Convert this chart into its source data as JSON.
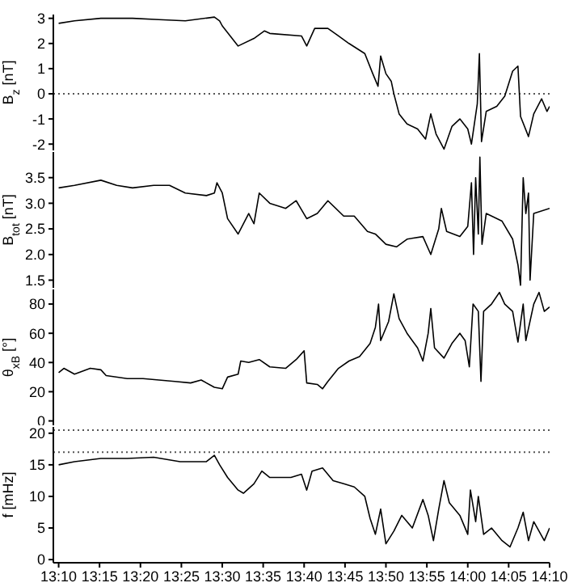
{
  "chart_data": [
    {
      "type": "line",
      "ylabel": "B$_{z}$ [nT]",
      "tick_labels": "y",
      "xlim": [
        13.1559,
        14.1667
      ],
      "xticks": [
        {
          "value": 13.1667,
          "label": null
        },
        {
          "value": 13.25,
          "label": null
        },
        {
          "value": 13.3333,
          "label": null
        },
        {
          "value": 13.4167,
          "label": null
        },
        {
          "value": 13.5,
          "label": null
        },
        {
          "value": 13.5833,
          "label": null
        },
        {
          "value": 13.6667,
          "label": null
        },
        {
          "value": 13.75,
          "label": null
        },
        {
          "value": 13.8333,
          "label": null
        },
        {
          "value": 13.9167,
          "label": null
        },
        {
          "value": 14,
          "label": null
        },
        {
          "value": 14.0833,
          "label": null
        },
        {
          "value": 14.1667,
          "label": null
        }
      ],
      "ylim": [
        -2.25,
        3.15
      ],
      "yticks": [
        -2,
        -1,
        0,
        1,
        2,
        3
      ],
      "ref_lines": [
        {
          "axis": "y",
          "value": 0,
          "line_style": "dotted"
        }
      ],
      "x": [
        13.1667,
        13.199,
        13.2527,
        13.3172,
        13.371,
        13.4247,
        13.4839,
        13.4946,
        13.5,
        13.5323,
        13.5645,
        13.586,
        13.5968,
        13.6613,
        13.672,
        13.6882,
        13.7151,
        13.7366,
        13.7581,
        13.7903,
        13.8065,
        13.8172,
        13.8226,
        13.8333,
        13.8441,
        13.8495,
        13.8602,
        13.8763,
        13.8978,
        13.914,
        13.9247,
        13.9355,
        13.9516,
        13.9677,
        13.9839,
        14,
        14.0075,
        14.0194,
        14.0237,
        14.028,
        14.0376,
        14.0591,
        14.0753,
        14.0914,
        14.1022,
        14.1075,
        14.1237,
        14.1344,
        14.1505,
        14.1613,
        14.1667
      ],
      "series": [
        {
          "color": "#000000",
          "values": [
            2.8,
            2.9,
            3.0,
            3.0,
            2.95,
            2.9,
            3.05,
            2.9,
            2.7,
            1.9,
            2.2,
            2.5,
            2.4,
            2.3,
            1.9,
            2.6,
            2.6,
            2.3,
            2.0,
            1.6,
            0.8,
            0.3,
            1.5,
            0.8,
            0.5,
            0,
            -0.8,
            -1.2,
            -1.4,
            -1.8,
            -0.8,
            -1.6,
            -2.2,
            -1.3,
            -1.0,
            -1.4,
            -2.0,
            -0.4,
            1.6,
            -1.9,
            -0.7,
            -0.5,
            -0.1,
            0.9,
            1.1,
            -0.9,
            -1.7,
            -0.8,
            -0.2,
            -0.7,
            -0.5
          ]
        }
      ]
    },
    {
      "type": "line",
      "ylabel": "B$_{tot}$ [nT]",
      "tick_labels": "y",
      "xlim": [
        13.1559,
        14.1667
      ],
      "xticks": [
        {
          "value": 13.1667,
          "label": null
        },
        {
          "value": 13.25,
          "label": null
        },
        {
          "value": 13.3333,
          "label": null
        },
        {
          "value": 13.4167,
          "label": null
        },
        {
          "value": 13.5,
          "label": null
        },
        {
          "value": 13.5833,
          "label": null
        },
        {
          "value": 13.6667,
          "label": null
        },
        {
          "value": 13.75,
          "label": null
        },
        {
          "value": 13.8333,
          "label": null
        },
        {
          "value": 13.9167,
          "label": null
        },
        {
          "value": 14,
          "label": null
        },
        {
          "value": 14.0833,
          "label": null
        },
        {
          "value": 14.1667,
          "label": null
        }
      ],
      "ylim": [
        1.35,
        4.0
      ],
      "yticks": [
        1.5,
        {
          "value": 2,
          "label": "2.0"
        },
        2.5,
        {
          "value": 3,
          "label": "3.0"
        },
        3.5
      ],
      "x": [
        13.1667,
        13.199,
        13.2527,
        13.2849,
        13.3172,
        13.3602,
        13.3925,
        13.4247,
        13.4677,
        13.4839,
        13.4892,
        13.5,
        13.5108,
        13.5323,
        13.5538,
        13.5645,
        13.5753,
        13.5968,
        13.629,
        13.6505,
        13.672,
        13.6935,
        13.7151,
        13.7473,
        13.7688,
        13.7957,
        13.8118,
        13.8333,
        13.8548,
        13.8763,
        13.9086,
        13.9247,
        13.9409,
        13.9462,
        13.957,
        13.9839,
        14,
        14.0075,
        14.0118,
        14.0161,
        14.0215,
        14.0247,
        14.029,
        14.0376,
        14.0699,
        14.0914,
        14.1022,
        14.1075,
        14.1129,
        14.1183,
        14.1237,
        14.1269,
        14.1344,
        14.1667
      ],
      "series": [
        {
          "color": "#000000",
          "values": [
            3.3,
            3.35,
            3.45,
            3.35,
            3.3,
            3.35,
            3.35,
            3.2,
            3.15,
            3.2,
            3.4,
            3.2,
            2.7,
            2.4,
            2.8,
            2.6,
            3.2,
            3.0,
            2.9,
            3.05,
            2.7,
            2.8,
            3.05,
            2.75,
            2.75,
            2.45,
            2.4,
            2.2,
            2.15,
            2.3,
            2.35,
            2.0,
            2.5,
            2.9,
            2.45,
            2.35,
            2.55,
            3.4,
            2.0,
            3.5,
            2.4,
            3.9,
            2.2,
            2.8,
            2.65,
            2.3,
            1.8,
            1.4,
            3.5,
            2.8,
            3.2,
            1.5,
            2.8,
            2.9
          ]
        }
      ]
    },
    {
      "type": "line",
      "ylabel": "θ$_{xB}$ [°]",
      "tick_labels": "y",
      "xlim": [
        13.1559,
        14.1667
      ],
      "xticks": [
        {
          "value": 13.1667,
          "label": null
        },
        {
          "value": 13.25,
          "label": null
        },
        {
          "value": 13.3333,
          "label": null
        },
        {
          "value": 13.4167,
          "label": null
        },
        {
          "value": 13.5,
          "label": null
        },
        {
          "value": 13.5833,
          "label": null
        },
        {
          "value": 13.6667,
          "label": null
        },
        {
          "value": 13.75,
          "label": null
        },
        {
          "value": 13.8333,
          "label": null
        },
        {
          "value": 13.9167,
          "label": null
        },
        {
          "value": 14,
          "label": null
        },
        {
          "value": 14.0833,
          "label": null
        },
        {
          "value": 14.1667,
          "label": null
        }
      ],
      "ylim": [
        -3,
        90
      ],
      "yticks": [
        0,
        20,
        40,
        60,
        80
      ],
      "x": [
        13.1667,
        13.1774,
        13.199,
        13.2312,
        13.2527,
        13.2634,
        13.3065,
        13.3387,
        13.371,
        13.4032,
        13.4355,
        13.457,
        13.4839,
        13.5,
        13.5108,
        13.5323,
        13.5376,
        13.5538,
        13.5753,
        13.5968,
        13.629,
        13.6505,
        13.6667,
        13.672,
        13.6935,
        13.7043,
        13.7151,
        13.7366,
        13.7581,
        13.7796,
        13.8011,
        13.8118,
        13.8183,
        13.8226,
        13.8387,
        13.8495,
        13.8602,
        13.8763,
        13.8978,
        13.9086,
        13.9194,
        13.9247,
        13.9323,
        13.9516,
        13.9677,
        13.9839,
        13.9946,
        14.0032,
        14.0108,
        14.0215,
        14.0269,
        14.0323,
        14.0484,
        14.0645,
        14.0753,
        14.0914,
        14.1022,
        14.1129,
        14.1183,
        14.1344,
        14.1452,
        14.1559,
        14.1667
      ],
      "series": [
        {
          "color": "#000000",
          "values": [
            33,
            36,
            32,
            36,
            35,
            31,
            29,
            29,
            28,
            27,
            26,
            28,
            23,
            22,
            30,
            32,
            41,
            40,
            42,
            37,
            36,
            42,
            48,
            26,
            25,
            22,
            27,
            36,
            41,
            44,
            53,
            64,
            80,
            55,
            68,
            87,
            70,
            60,
            50,
            41,
            60,
            77,
            50,
            43,
            53,
            60,
            55,
            37,
            80,
            75,
            27,
            75,
            80,
            88,
            80,
            75,
            54,
            80,
            55,
            80,
            88,
            75,
            78
          ]
        }
      ]
    },
    {
      "type": "line",
      "ylabel": "f [mHz]",
      "xlim": [
        13.1559,
        14.1667
      ],
      "xticks": [
        {
          "value": 13.1667,
          "label": "13:10"
        },
        {
          "value": 13.25,
          "label": "13:15"
        },
        {
          "value": 13.3333,
          "label": "13:20"
        },
        {
          "value": 13.4167,
          "label": "13:25"
        },
        {
          "value": 13.5,
          "label": "13:30"
        },
        {
          "value": 13.5833,
          "label": "13:35"
        },
        {
          "value": 13.6667,
          "label": "13:40"
        },
        {
          "value": 13.75,
          "label": "13:45"
        },
        {
          "value": 13.8333,
          "label": "13:50"
        },
        {
          "value": 13.9167,
          "label": "13:55"
        },
        {
          "value": 14,
          "label": "14:00"
        },
        {
          "value": 14.0833,
          "label": "14:05"
        },
        {
          "value": 14.1667,
          "label": "14:10"
        }
      ],
      "ylim": [
        -0.5,
        21
      ],
      "yticks": [
        0,
        5,
        10,
        15,
        20
      ],
      "ref_lines": [
        {
          "axis": "y",
          "value": 20.5,
          "line_style": "dotted"
        },
        {
          "axis": "y",
          "value": 17,
          "line_style": "dotted"
        }
      ],
      "x": [
        13.1667,
        13.199,
        13.2527,
        13.3065,
        13.3602,
        13.414,
        13.4677,
        13.4839,
        13.4946,
        13.5108,
        13.5323,
        13.543,
        13.5645,
        13.5806,
        13.5968,
        13.6398,
        13.6613,
        13.672,
        13.6828,
        13.7043,
        13.7258,
        13.7473,
        13.7688,
        13.7903,
        13.8011,
        13.8118,
        13.8226,
        13.8333,
        13.8495,
        13.8656,
        13.8871,
        13.9086,
        13.9194,
        13.9301,
        13.9409,
        13.9516,
        13.9624,
        13.9839,
        14,
        14.0054,
        14.0161,
        14.0215,
        14.0323,
        14.0484,
        14.0699,
        14.086,
        14.1022,
        14.1129,
        14.1237,
        14.1344,
        14.1559,
        14.1667
      ],
      "series": [
        {
          "color": "#000000",
          "values": [
            15,
            15.5,
            16,
            16,
            16.2,
            15.5,
            15.5,
            16.5,
            15,
            13,
            11,
            10.5,
            12,
            14,
            13,
            13,
            13.5,
            11,
            14,
            14.5,
            12.5,
            12,
            11.5,
            10,
            6.5,
            4,
            8,
            2.5,
            4.5,
            7,
            5,
            9.5,
            7,
            3,
            8,
            12.5,
            9,
            7,
            4,
            11,
            6,
            10,
            4,
            5,
            3,
            2,
            5,
            7.5,
            3,
            6,
            3,
            5
          ]
        }
      ]
    }
  ]
}
